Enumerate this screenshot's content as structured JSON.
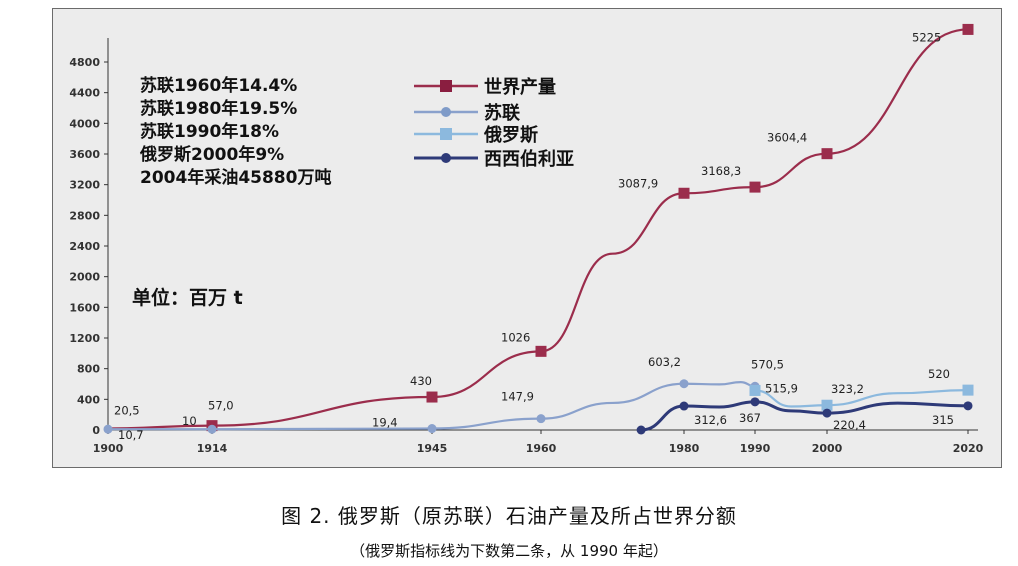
{
  "caption": "图 2.  俄罗斯（原苏联）石油产量及所占世界分额",
  "subcaption": "（俄罗斯指标线为下数第二条，从 1990 年起）",
  "notes": [
    "苏联1960年14.4%",
    "苏联1980年19.5%",
    "苏联1990年18%",
    "俄罗斯2000年9%",
    "2004年采油45880万吨"
  ],
  "unit": "单位：百万 t",
  "chart_data": {
    "type": "line",
    "x_ticks": [
      1900,
      1914,
      1945,
      1960,
      1980,
      1990,
      2000,
      2020
    ],
    "y_ticks": [
      0,
      400,
      800,
      1200,
      1600,
      2000,
      2400,
      2800,
      3200,
      3600,
      4000,
      4400,
      4800
    ],
    "xlim": [
      1900,
      2020
    ],
    "ylim": [
      0,
      5100
    ],
    "grid": false,
    "legend_position": "top-center",
    "series": [
      {
        "name": "世界产量",
        "color": "#9b2d4c",
        "marker": "square",
        "points": [
          [
            1900,
            20.5
          ],
          [
            1914,
            57.0
          ],
          [
            1945,
            430
          ],
          [
            1960,
            1026
          ],
          [
            1970,
            2300
          ],
          [
            1980,
            3087.9
          ],
          [
            1990,
            3168.3
          ],
          [
            2000,
            3604.4
          ],
          [
            2020,
            5225
          ]
        ],
        "marked_x": [
          1914,
          1945,
          1960,
          1980,
          1990,
          2000,
          2020
        ]
      },
      {
        "name": "苏联",
        "color": "#8aa1cc",
        "marker": "circle",
        "points": [
          [
            1900,
            10.7
          ],
          [
            1914,
            10
          ],
          [
            1945,
            19.4
          ],
          [
            1960,
            147.9
          ],
          [
            1970,
            353
          ],
          [
            1980,
            603.2
          ],
          [
            1985,
            595
          ],
          [
            1988,
            624
          ],
          [
            1990,
            570.5
          ]
        ],
        "marked_x": [
          1900,
          1914,
          1945,
          1960,
          1980,
          1990
        ]
      },
      {
        "name": "俄罗斯",
        "color": "#8cb9de",
        "marker": "square",
        "points": [
          [
            1990,
            515.9
          ],
          [
            1995,
            307
          ],
          [
            2000,
            323.2
          ],
          [
            2010,
            480
          ],
          [
            2020,
            520
          ]
        ],
        "marked_x": [
          1990,
          2000,
          2020
        ]
      },
      {
        "name": "西西伯利亚",
        "color": "#2e3a78",
        "marker": "circle",
        "points": [
          [
            1974,
            0
          ],
          [
            1980,
            312.6
          ],
          [
            1985,
            300
          ],
          [
            1990,
            367
          ],
          [
            1995,
            250
          ],
          [
            2000,
            220.4
          ],
          [
            2010,
            350
          ],
          [
            2020,
            315
          ]
        ],
        "marked_x": [
          1974,
          1980,
          1990,
          2000,
          2020
        ]
      }
    ],
    "data_labels": [
      {
        "text": "20,5",
        "x": 1900,
        "y": 20.5,
        "dx": 6,
        "dy": -14
      },
      {
        "text": "10,7",
        "x": 1900,
        "y": 10.7,
        "dx": 10,
        "dy": 10
      },
      {
        "text": "10",
        "x": 1914,
        "y": 10,
        "dx": -30,
        "dy": -4
      },
      {
        "text": "57,0",
        "x": 1914,
        "y": 57,
        "dx": -4,
        "dy": -16
      },
      {
        "text": "19,4",
        "x": 1945,
        "y": 19.4,
        "dx": -60,
        "dy": -2
      },
      {
        "text": "430",
        "x": 1945,
        "y": 430,
        "dx": -22,
        "dy": -12
      },
      {
        "text": "147,9",
        "x": 1960,
        "y": 147.9,
        "dx": -40,
        "dy": -18
      },
      {
        "text": "1026",
        "x": 1960,
        "y": 1026,
        "dx": -40,
        "dy": -10
      },
      {
        "text": "3087,9",
        "x": 1980,
        "y": 3087.9,
        "dx": -66,
        "dy": -6
      },
      {
        "text": "603,2",
        "x": 1980,
        "y": 603.2,
        "dx": -36,
        "dy": -18
      },
      {
        "text": "312,6",
        "x": 1980,
        "y": 312.6,
        "dx": 10,
        "dy": 18
      },
      {
        "text": "3168,3",
        "x": 1990,
        "y": 3168.3,
        "dx": -54,
        "dy": -12
      },
      {
        "text": "570,5",
        "x": 1990,
        "y": 570.5,
        "dx": -4,
        "dy": -18
      },
      {
        "text": "515,9",
        "x": 1990,
        "y": 515.9,
        "dx": 10,
        "dy": 2
      },
      {
        "text": "367",
        "x": 1990,
        "y": 367,
        "dx": -16,
        "dy": 20
      },
      {
        "text": "3604,4",
        "x": 2000,
        "y": 3604.4,
        "dx": -60,
        "dy": -12
      },
      {
        "text": "323,2",
        "x": 2000,
        "y": 323.2,
        "dx": 4,
        "dy": -12
      },
      {
        "text": "220,4",
        "x": 2000,
        "y": 220.4,
        "dx": 6,
        "dy": 16
      },
      {
        "text": "5225",
        "x": 2020,
        "y": 5225,
        "dx": -56,
        "dy": 12
      },
      {
        "text": "520",
        "x": 2020,
        "y": 520,
        "dx": -40,
        "dy": -12
      },
      {
        "text": "315",
        "x": 2020,
        "y": 315,
        "dx": -36,
        "dy": 18
      }
    ]
  }
}
